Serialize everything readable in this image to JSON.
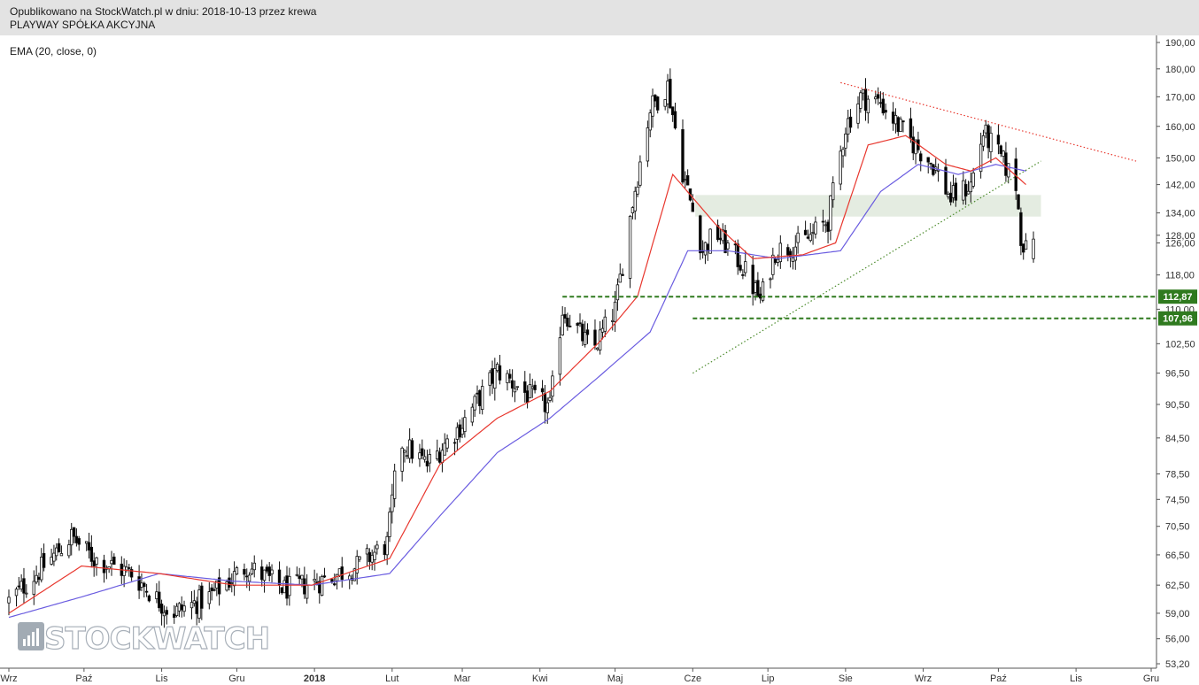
{
  "header": {
    "published": "Opublikowano na StockWatch.pl w dniu: 2018-10-13 przez krewa",
    "instrument": "PLAYWAY SPÓŁKA AKCYJNA"
  },
  "indicator_label": "EMA (20, close, 0)",
  "logo": {
    "text": "STOCKWATCH",
    "icon": "bar-chart-icon"
  },
  "colors": {
    "up": "#ffffff",
    "down": "#000000",
    "ema_fast": "#e8372e",
    "ema_slow": "#6a5ce0",
    "support": "#2f7a1f",
    "resistance_trend": "#e8372e",
    "support_trend": "#4a8a2a",
    "zone": "#dfe9dc"
  },
  "chart_data": {
    "type": "candlestick",
    "title": "",
    "y_scale": "log",
    "ylim": [
      53.2,
      193
    ],
    "y_ticks": [
      "190,00",
      "180,00",
      "170,00",
      "160,00",
      "150,00",
      "142,00",
      "134,00",
      "128,00",
      "126,00",
      "118,00",
      "110,00",
      "102,50",
      "96,50",
      "90,50",
      "84,50",
      "78,50",
      "74,50",
      "70,50",
      "66,50",
      "62,50",
      "59,00",
      "56,00",
      "53,20"
    ],
    "y_tick_values": [
      190,
      180,
      170,
      160,
      150,
      142,
      134,
      128,
      126,
      118,
      110,
      102.5,
      96.5,
      90.5,
      84.5,
      78.5,
      74.5,
      70.5,
      66.5,
      62.5,
      59,
      56,
      53.2
    ],
    "x_ticks": [
      {
        "label": "Wrz",
        "date": "2017-09-01"
      },
      {
        "label": "Paź",
        "date": "2017-10-01"
      },
      {
        "label": "Lis",
        "date": "2017-11-01"
      },
      {
        "label": "Gru",
        "date": "2017-12-01"
      },
      {
        "label": "2018",
        "date": "2018-01-01"
      },
      {
        "label": "Lut",
        "date": "2018-02-01"
      },
      {
        "label": "Mar",
        "date": "2018-03-01"
      },
      {
        "label": "Kwi",
        "date": "2018-04-01"
      },
      {
        "label": "Maj",
        "date": "2018-05-01"
      },
      {
        "label": "Cze",
        "date": "2018-06-01"
      },
      {
        "label": "Lip",
        "date": "2018-07-01"
      },
      {
        "label": "Sie",
        "date": "2018-08-01"
      },
      {
        "label": "Wrz",
        "date": "2018-09-01"
      },
      {
        "label": "Paź",
        "date": "2018-10-01"
      },
      {
        "label": "Lis",
        "date": "2018-11-01"
      },
      {
        "label": "Gru",
        "date": "2018-12-01"
      }
    ],
    "x_range": [
      "2017-09-01",
      "2018-12-01"
    ],
    "close_keypoints": [
      [
        "2017-09-01",
        60.5
      ],
      [
        "2017-09-15",
        65
      ],
      [
        "2017-09-26",
        69
      ],
      [
        "2017-10-05",
        66
      ],
      [
        "2017-10-20",
        64
      ],
      [
        "2017-11-05",
        59
      ],
      [
        "2017-11-20",
        61
      ],
      [
        "2017-12-05",
        65
      ],
      [
        "2017-12-20",
        62
      ],
      [
        "2018-01-03",
        63
      ],
      [
        "2018-01-18",
        65
      ],
      [
        "2018-01-30",
        68
      ],
      [
        "2018-02-04",
        84
      ],
      [
        "2018-02-15",
        80
      ],
      [
        "2018-03-01",
        87
      ],
      [
        "2018-03-15",
        97
      ],
      [
        "2018-03-28",
        92
      ],
      [
        "2018-04-05",
        90
      ],
      [
        "2018-04-10",
        110
      ],
      [
        "2018-04-22",
        101
      ],
      [
        "2018-05-01",
        110
      ],
      [
        "2018-05-08",
        137
      ],
      [
        "2018-05-15",
        166
      ],
      [
        "2018-05-22",
        174
      ],
      [
        "2018-05-28",
        146
      ],
      [
        "2018-06-05",
        124
      ],
      [
        "2018-06-10",
        129
      ],
      [
        "2018-06-20",
        121
      ],
      [
        "2018-06-28",
        112
      ],
      [
        "2018-07-04",
        124
      ],
      [
        "2018-07-15",
        126
      ],
      [
        "2018-07-25",
        132
      ],
      [
        "2018-08-01",
        160
      ],
      [
        "2018-08-07",
        170
      ],
      [
        "2018-08-15",
        168
      ],
      [
        "2018-08-25",
        157
      ],
      [
        "2018-09-05",
        148
      ],
      [
        "2018-09-12",
        138
      ],
      [
        "2018-09-20",
        142
      ],
      [
        "2018-09-25",
        158
      ],
      [
        "2018-10-02",
        150
      ],
      [
        "2018-10-08",
        142
      ],
      [
        "2018-10-10",
        128
      ],
      [
        "2018-10-12",
        124
      ],
      [
        "2018-10-15",
        127
      ]
    ],
    "last_candle": {
      "date": "2018-10-15",
      "open": 122,
      "high": 129,
      "low": 121,
      "close": 127
    },
    "ema_fast_keypoints": [
      [
        "2017-09-01",
        59
      ],
      [
        "2017-09-30",
        65
      ],
      [
        "2017-10-31",
        64
      ],
      [
        "2017-11-30",
        62.5
      ],
      [
        "2017-12-31",
        62.5
      ],
      [
        "2018-01-31",
        66
      ],
      [
        "2018-02-20",
        80
      ],
      [
        "2018-03-15",
        88
      ],
      [
        "2018-04-05",
        93
      ],
      [
        "2018-04-25",
        103
      ],
      [
        "2018-05-10",
        113
      ],
      [
        "2018-05-24",
        145
      ],
      [
        "2018-06-10",
        131
      ],
      [
        "2018-06-25",
        122
      ],
      [
        "2018-07-15",
        123
      ],
      [
        "2018-07-28",
        126
      ],
      [
        "2018-08-10",
        154
      ],
      [
        "2018-08-25",
        157
      ],
      [
        "2018-09-10",
        148
      ],
      [
        "2018-09-20",
        146
      ],
      [
        "2018-09-30",
        150
      ],
      [
        "2018-10-12",
        142
      ]
    ],
    "ema_slow_keypoints": [
      [
        "2017-09-01",
        58.5
      ],
      [
        "2017-09-30",
        61
      ],
      [
        "2017-10-31",
        64
      ],
      [
        "2017-11-30",
        63
      ],
      [
        "2017-12-31",
        62.5
      ],
      [
        "2018-01-31",
        64
      ],
      [
        "2018-02-20",
        72
      ],
      [
        "2018-03-15",
        82
      ],
      [
        "2018-04-05",
        88
      ],
      [
        "2018-04-25",
        96
      ],
      [
        "2018-05-15",
        105
      ],
      [
        "2018-05-30",
        124
      ],
      [
        "2018-06-15",
        124
      ],
      [
        "2018-07-05",
        122
      ],
      [
        "2018-07-30",
        124
      ],
      [
        "2018-08-15",
        140
      ],
      [
        "2018-08-30",
        148
      ],
      [
        "2018-09-15",
        145
      ],
      [
        "2018-09-30",
        148
      ],
      [
        "2018-10-12",
        146
      ]
    ],
    "support_levels": [
      {
        "label": "112,87",
        "value": 112.87,
        "from": "2018-04-10"
      },
      {
        "label": "107,96",
        "value": 107.96,
        "from": "2018-06-01"
      }
    ],
    "zone": {
      "from": "2018-06-02",
      "to": "2018-10-18",
      "low": 133,
      "high": 139
    },
    "resistance_trendline": {
      "from": [
        "2018-07-30",
        175
      ],
      "to": [
        "2018-11-25",
        149
      ]
    },
    "support_trendline": {
      "from": [
        "2018-06-01",
        96.5
      ],
      "to": [
        "2018-10-18",
        149
      ]
    }
  }
}
